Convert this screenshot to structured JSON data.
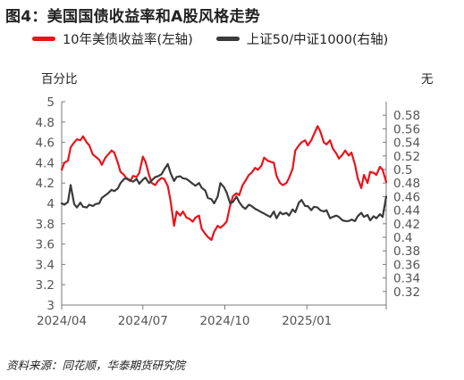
{
  "title": "图4：美国国债收益率和A股风格走势",
  "source": "资料来源：同花顺，华泰期货研究院",
  "unit_left": "百分比",
  "unit_right": "无",
  "colors": {
    "series1": "#e8141c",
    "series2": "#3a3a3a",
    "axis": "#7a7a7a"
  },
  "chart_data": {
    "type": "line",
    "title": "图4：美国国债收益率和A股风格走势",
    "x_tick_labels": [
      "2024/04",
      "2024/07",
      "2024/10",
      "2025/01"
    ],
    "x_ticks": [
      "2024-04-01",
      "2024-07-01",
      "2024-10-01",
      "2025-01-01"
    ],
    "x_range": [
      "2024-04-01",
      "2025-03-31"
    ],
    "y_left": {
      "label": "百分比",
      "ylim": [
        3,
        5
      ],
      "ticks": [
        "3",
        "3.2",
        "3.4",
        "3.6",
        "3.8",
        "4",
        "4.2",
        "4.4",
        "4.6",
        "4.8",
        "5"
      ]
    },
    "y_right": {
      "label": "无",
      "ylim": [
        0.3,
        0.6
      ],
      "ticks": [
        "0.32",
        "0.34",
        "0.36",
        "0.38",
        "0.4",
        "0.42",
        "0.44",
        "0.46",
        "0.48",
        "0.5",
        "0.52",
        "0.54",
        "0.56",
        "0.58"
      ]
    },
    "grid": false,
    "legend_position": "top",
    "series": [
      {
        "name": "10年美债收益率(左轴)",
        "axis": "left",
        "color": "#e8141c",
        "x": [
          "2024-04-01",
          "2024-04-04",
          "2024-04-08",
          "2024-04-11",
          "2024-04-15",
          "2024-04-18",
          "2024-04-22",
          "2024-04-25",
          "2024-04-29",
          "2024-05-02",
          "2024-05-06",
          "2024-05-09",
          "2024-05-13",
          "2024-05-16",
          "2024-05-20",
          "2024-05-23",
          "2024-05-27",
          "2024-05-30",
          "2024-06-03",
          "2024-06-06",
          "2024-06-10",
          "2024-06-13",
          "2024-06-17",
          "2024-06-20",
          "2024-06-24",
          "2024-06-27",
          "2024-07-01",
          "2024-07-04",
          "2024-07-08",
          "2024-07-11",
          "2024-07-15",
          "2024-07-18",
          "2024-07-22",
          "2024-07-25",
          "2024-07-29",
          "2024-08-01",
          "2024-08-05",
          "2024-08-08",
          "2024-08-12",
          "2024-08-15",
          "2024-08-19",
          "2024-08-22",
          "2024-08-26",
          "2024-08-29",
          "2024-09-02",
          "2024-09-05",
          "2024-09-09",
          "2024-09-12",
          "2024-09-16",
          "2024-09-19",
          "2024-09-23",
          "2024-09-26",
          "2024-09-30",
          "2024-10-03",
          "2024-10-07",
          "2024-10-10",
          "2024-10-14",
          "2024-10-17",
          "2024-10-21",
          "2024-10-24",
          "2024-10-28",
          "2024-10-31",
          "2024-11-04",
          "2024-11-07",
          "2024-11-11",
          "2024-11-14",
          "2024-11-18",
          "2024-11-21",
          "2024-11-25",
          "2024-11-28",
          "2024-12-02",
          "2024-12-05",
          "2024-12-09",
          "2024-12-12",
          "2024-12-16",
          "2024-12-19",
          "2024-12-23",
          "2024-12-26",
          "2024-12-30",
          "2025-01-02",
          "2025-01-06",
          "2025-01-09",
          "2025-01-13",
          "2025-01-16",
          "2025-01-20",
          "2025-01-23",
          "2025-01-27",
          "2025-01-30",
          "2025-02-03",
          "2025-02-06",
          "2025-02-10",
          "2025-02-13",
          "2025-02-17",
          "2025-02-20",
          "2025-02-24",
          "2025-02-27",
          "2025-03-03",
          "2025-03-06",
          "2025-03-10",
          "2025-03-13",
          "2025-03-17",
          "2025-03-20",
          "2025-03-24",
          "2025-03-27",
          "2025-03-31"
        ],
        "values": [
          4.33,
          4.4,
          4.42,
          4.55,
          4.6,
          4.63,
          4.62,
          4.66,
          4.6,
          4.57,
          4.48,
          4.46,
          4.43,
          4.38,
          4.45,
          4.48,
          4.52,
          4.5,
          4.4,
          4.31,
          4.28,
          4.24,
          4.22,
          4.27,
          4.26,
          4.3,
          4.46,
          4.41,
          4.28,
          4.2,
          4.18,
          4.22,
          4.25,
          4.24,
          4.17,
          4.03,
          3.78,
          3.92,
          3.88,
          3.92,
          3.86,
          3.85,
          3.82,
          3.86,
          3.88,
          3.75,
          3.7,
          3.67,
          3.64,
          3.72,
          3.78,
          3.76,
          3.79,
          3.82,
          3.98,
          4.07,
          4.1,
          4.08,
          4.18,
          4.22,
          4.28,
          4.3,
          4.35,
          4.33,
          4.37,
          4.45,
          4.42,
          4.41,
          4.4,
          4.27,
          4.2,
          4.18,
          4.2,
          4.25,
          4.34,
          4.52,
          4.57,
          4.6,
          4.62,
          4.57,
          4.62,
          4.68,
          4.76,
          4.71,
          4.6,
          4.58,
          4.62,
          4.54,
          4.49,
          4.44,
          4.48,
          4.52,
          4.47,
          4.5,
          4.38,
          4.25,
          4.15,
          4.28,
          4.2,
          4.31,
          4.3,
          4.28,
          4.36,
          4.33,
          4.21
        ]
      },
      {
        "name": "上证50/中证1000(右轴)",
        "axis": "right",
        "color": "#3a3a3a",
        "x": [
          "2024-04-01",
          "2024-04-04",
          "2024-04-08",
          "2024-04-11",
          "2024-04-15",
          "2024-04-18",
          "2024-04-22",
          "2024-04-25",
          "2024-04-29",
          "2024-05-02",
          "2024-05-06",
          "2024-05-09",
          "2024-05-13",
          "2024-05-16",
          "2024-05-20",
          "2024-05-23",
          "2024-05-27",
          "2024-05-30",
          "2024-06-03",
          "2024-06-06",
          "2024-06-10",
          "2024-06-13",
          "2024-06-17",
          "2024-06-20",
          "2024-06-24",
          "2024-06-27",
          "2024-07-01",
          "2024-07-04",
          "2024-07-08",
          "2024-07-11",
          "2024-07-15",
          "2024-07-18",
          "2024-07-22",
          "2024-07-25",
          "2024-07-29",
          "2024-08-01",
          "2024-08-05",
          "2024-08-08",
          "2024-08-12",
          "2024-08-15",
          "2024-08-19",
          "2024-08-22",
          "2024-08-26",
          "2024-08-29",
          "2024-09-02",
          "2024-09-05",
          "2024-09-09",
          "2024-09-12",
          "2024-09-16",
          "2024-09-19",
          "2024-09-23",
          "2024-09-26",
          "2024-09-30",
          "2024-10-03",
          "2024-10-07",
          "2024-10-10",
          "2024-10-14",
          "2024-10-17",
          "2024-10-21",
          "2024-10-24",
          "2024-10-28",
          "2024-10-31",
          "2024-11-04",
          "2024-11-07",
          "2024-11-11",
          "2024-11-14",
          "2024-11-18",
          "2024-11-21",
          "2024-11-25",
          "2024-11-28",
          "2024-12-02",
          "2024-12-05",
          "2024-12-09",
          "2024-12-12",
          "2024-12-16",
          "2024-12-19",
          "2024-12-23",
          "2024-12-26",
          "2024-12-30",
          "2025-01-02",
          "2025-01-06",
          "2025-01-09",
          "2025-01-13",
          "2025-01-16",
          "2025-01-20",
          "2025-01-23",
          "2025-01-27",
          "2025-01-30",
          "2025-02-03",
          "2025-02-06",
          "2025-02-10",
          "2025-02-13",
          "2025-02-17",
          "2025-02-20",
          "2025-02-24",
          "2025-02-27",
          "2025-03-03",
          "2025-03-06",
          "2025-03-10",
          "2025-03-13",
          "2025-03-17",
          "2025-03-20",
          "2025-03-24",
          "2025-03-27",
          "2025-03-31"
        ],
        "values": [
          0.45,
          0.448,
          0.452,
          0.477,
          0.449,
          0.444,
          0.451,
          0.445,
          0.444,
          0.448,
          0.446,
          0.449,
          0.45,
          0.458,
          0.462,
          0.465,
          0.47,
          0.468,
          0.472,
          0.48,
          0.486,
          0.487,
          0.484,
          0.482,
          0.486,
          0.479,
          0.485,
          0.488,
          0.48,
          0.484,
          0.489,
          0.49,
          0.493,
          0.5,
          0.508,
          0.495,
          0.483,
          0.489,
          0.49,
          0.487,
          0.486,
          0.483,
          0.479,
          0.476,
          0.48,
          0.473,
          0.469,
          0.458,
          0.456,
          0.45,
          0.46,
          0.48,
          0.474,
          0.466,
          0.45,
          0.452,
          0.46,
          0.452,
          0.445,
          0.442,
          0.448,
          0.446,
          0.442,
          0.44,
          0.437,
          0.435,
          0.432,
          0.43,
          0.438,
          0.428,
          0.437,
          0.434,
          0.436,
          0.432,
          0.441,
          0.437,
          0.451,
          0.455,
          0.446,
          0.446,
          0.44,
          0.445,
          0.444,
          0.44,
          0.438,
          0.44,
          0.428,
          0.43,
          0.432,
          0.43,
          0.425,
          0.424,
          0.424,
          0.426,
          0.424,
          0.431,
          0.436,
          0.43,
          0.433,
          0.425,
          0.431,
          0.428,
          0.434,
          0.43,
          0.46
        ]
      }
    ]
  }
}
